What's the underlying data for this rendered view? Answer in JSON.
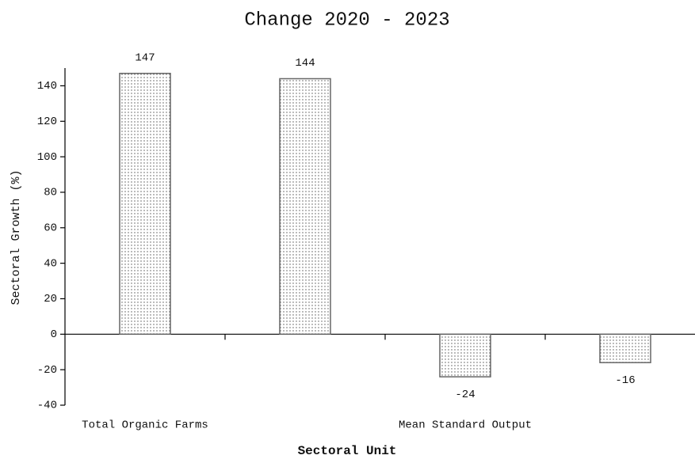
{
  "chart_data": {
    "type": "bar",
    "title": "Change 2020 - 2023",
    "x_label": "Sectoral Unit",
    "y_label": "Sectoral Growth (%)",
    "categories": [
      "Total Organic Farms",
      null,
      "Mean Standard Output",
      null
    ],
    "values": [
      147,
      144,
      -24,
      -16
    ],
    "color": "#ffffff",
    "ylim": [
      -40,
      150
    ],
    "yticks": [
      -40,
      -20,
      0,
      20,
      40,
      60,
      80,
      100,
      120,
      140
    ],
    "grid": false
  }
}
